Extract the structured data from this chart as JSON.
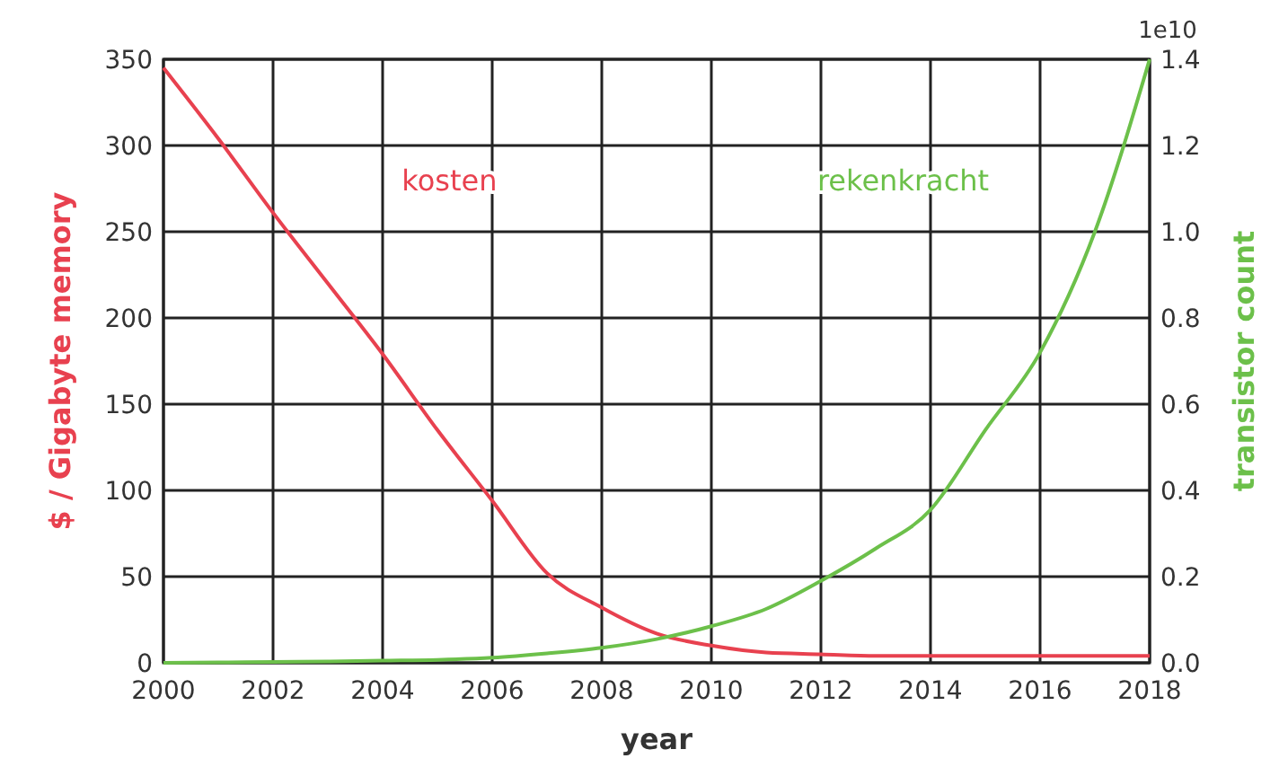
{
  "chart_data": {
    "type": "line",
    "xlabel": "year",
    "ylabel": "$ / Gigabyte memory",
    "y2label": "transistor count",
    "x": [
      2000,
      2001,
      2002,
      2003,
      2004,
      2005,
      2006,
      2007,
      2008,
      2009,
      2010,
      2011,
      2012,
      2013,
      2014,
      2015,
      2016,
      2017,
      2018
    ],
    "series": [
      {
        "name": "kosten",
        "color": "#e8414f",
        "values": [
          345,
          304,
          261,
          220,
          179,
          135,
          94,
          52,
          32,
          17,
          10,
          6,
          5,
          4,
          4,
          4,
          4,
          4,
          4
        ]
      },
      {
        "name": "rekenkracht",
        "color": "#6cc04a",
        "axis": "y2",
        "values": [
          0,
          0.001,
          0.002,
          0.003,
          0.005,
          0.007,
          0.012,
          0.022,
          0.035,
          0.055,
          0.085,
          0.125,
          0.19,
          0.265,
          0.355,
          0.54,
          0.72,
          1.0,
          1.4
        ]
      }
    ],
    "xlim": [
      2000,
      2018
    ],
    "xticks": [
      2000,
      2002,
      2004,
      2006,
      2008,
      2010,
      2012,
      2014,
      2016,
      2018
    ],
    "ylim": [
      0,
      350
    ],
    "yticks": [
      0,
      50,
      100,
      150,
      200,
      250,
      300,
      350
    ],
    "y2lim": [
      0,
      1.4
    ],
    "y2ticks": [
      {
        "value": 0,
        "label": "0.0"
      },
      {
        "value": 0.2,
        "label": "0.2"
      },
      {
        "value": 0.4,
        "label": "0.4"
      },
      {
        "value": 0.6,
        "label": "0.6"
      },
      {
        "value": 0.8,
        "label": "0.8"
      },
      {
        "value": 1,
        "label": "1.0"
      },
      {
        "value": 1.2,
        "label": "1.2"
      },
      {
        "value": 1.4,
        "label": "1.4"
      }
    ],
    "annotations": [
      "1e10"
    ],
    "grid": true,
    "marker": "none",
    "line_style": "solid"
  }
}
